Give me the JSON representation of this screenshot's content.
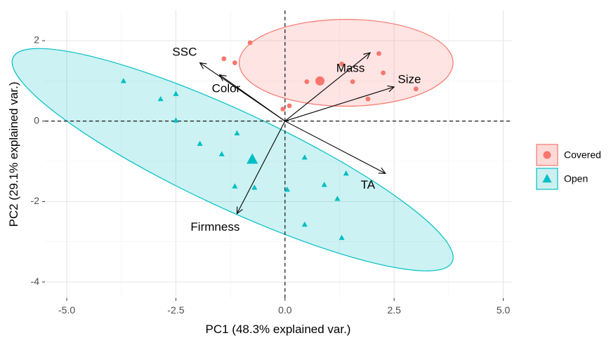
{
  "chart_data": {
    "type": "scatter",
    "title": "",
    "xlabel": "PC1 (48.3% explained var.)",
    "ylabel": "PC2 (29.1% explained var.)",
    "xlim": [
      -5.5,
      5.2
    ],
    "ylim": [
      -4.4,
      2.75
    ],
    "xticks": [
      -5,
      -2.5,
      0,
      2.5,
      5
    ],
    "xtick_labels": [
      "-5.0",
      "-2.5",
      "0.0",
      "2.5",
      "5.0"
    ],
    "yticks": [
      -4,
      -2,
      0,
      2
    ],
    "ytick_labels": [
      "-4",
      "-2",
      "0",
      "2"
    ],
    "grid": true,
    "legend_position": "right",
    "series": [
      {
        "name": "Covered",
        "marker": "circle",
        "color": "#F8766D",
        "centroid": [
          0.8,
          1.0
        ],
        "ellipse": {
          "center": [
            1.4,
            1.45
          ],
          "rx": 2.45,
          "ry": 1.08,
          "angle_deg": 0
        },
        "points": [
          [
            -1.4,
            1.55
          ],
          [
            -1.15,
            1.45
          ],
          [
            -0.8,
            1.95
          ],
          [
            0.5,
            0.98
          ],
          [
            0.8,
            1.0
          ],
          [
            1.55,
            0.98
          ],
          [
            1.9,
            0.55
          ],
          [
            2.15,
            1.68
          ],
          [
            2.25,
            1.2
          ],
          [
            3.0,
            0.8
          ],
          [
            -0.05,
            0.3
          ],
          [
            0.1,
            0.38
          ],
          [
            1.3,
            1.42
          ]
        ]
      },
      {
        "name": "Open",
        "marker": "triangle",
        "color": "#00BFC4",
        "centroid": [
          -0.75,
          -0.95
        ],
        "ellipse": {
          "center": [
            -1.2,
            -0.96
          ],
          "rx": 5.55,
          "ry": 1.2,
          "angle_deg": 25
        },
        "points": [
          [
            -3.7,
            1.0
          ],
          [
            -2.85,
            0.55
          ],
          [
            -2.5,
            0.68
          ],
          [
            -2.5,
            0.02
          ],
          [
            -1.95,
            -0.56
          ],
          [
            -1.45,
            -0.82
          ],
          [
            -1.1,
            -0.3
          ],
          [
            -1.15,
            -1.62
          ],
          [
            -0.7,
            -1.65
          ],
          [
            0.05,
            -1.7
          ],
          [
            0.45,
            -0.9
          ],
          [
            0.9,
            -1.58
          ],
          [
            1.4,
            -1.3
          ],
          [
            1.2,
            -1.93
          ],
          [
            0.45,
            -2.57
          ],
          [
            1.3,
            -2.9
          ]
        ]
      }
    ],
    "loadings": [
      {
        "name": "SSC",
        "x": -1.95,
        "y": 1.45,
        "label_x": -2.3,
        "label_y": 1.7
      },
      {
        "name": "Color",
        "x": -1.5,
        "y": 1.15,
        "label_x": -1.35,
        "label_y": 0.8
      },
      {
        "name": "Mass",
        "x": 1.95,
        "y": 1.7,
        "label_x": 1.5,
        "label_y": 1.3
      },
      {
        "name": "Size",
        "x": 2.5,
        "y": 0.85,
        "label_x": 2.85,
        "label_y": 1.02
      },
      {
        "name": "TA",
        "x": 2.3,
        "y": -1.3,
        "label_x": 1.9,
        "label_y": -1.6
      },
      {
        "name": "Firmness",
        "x": -1.1,
        "y": -2.3,
        "label_x": -1.6,
        "label_y": -2.65
      }
    ]
  }
}
